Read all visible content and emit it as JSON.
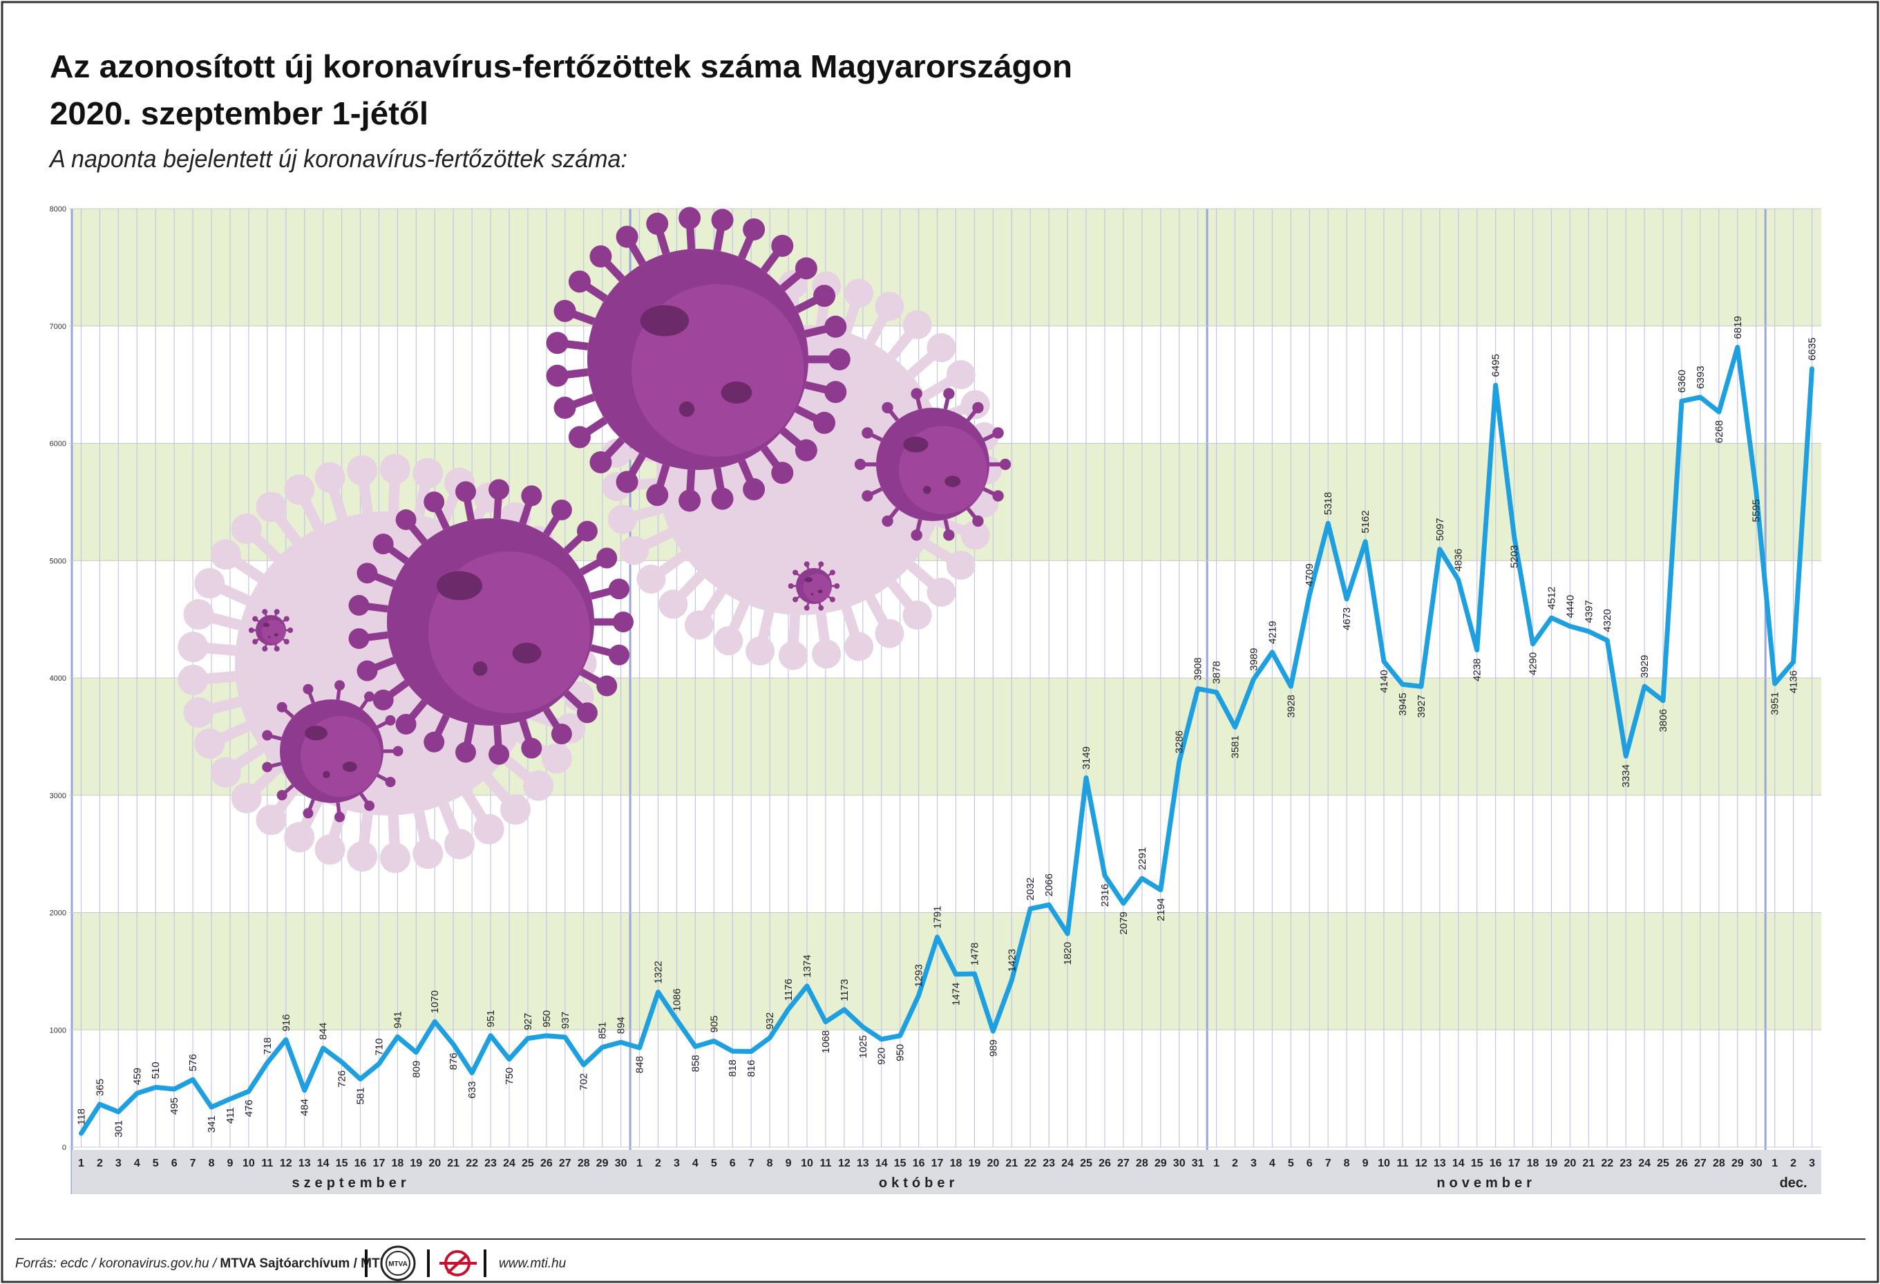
{
  "title_line1": "Az azonosított új koronavírus-fertőzöttek száma Magyarországon",
  "title_line2": "2020. szeptember 1-jétől",
  "subtitle": "A naponta bejelentett új koronavírus-fertőzöttek száma:",
  "footer": {
    "source": "Forrás: ecdc / koronavirus.gov.hu / ",
    "credit": "MTVA Sajtóarchívum / MTI",
    "logo1_text": "MTVA",
    "website": "www.mti.hu"
  },
  "colors": {
    "line": "#1ea0e0",
    "band": "#e8f0d2",
    "grid_day": "#c3c6e2",
    "grid_month": "#9aa6d8",
    "axis_strip": "#dcdde3",
    "virus_dark": "#8e3a8e",
    "virus_light": "#e6d2e2"
  },
  "chart_data": {
    "type": "line",
    "title": "Az azonosított új koronavírus-fertőzöttek száma Magyarországon 2020. szeptember 1-jétől",
    "subtitle": "A naponta bejelentett új koronavírus-fertőzöttek száma:",
    "ylim": [
      0,
      8000
    ],
    "yticks": [
      0,
      1000,
      2000,
      3000,
      4000,
      5000,
      6000,
      7000,
      8000
    ],
    "grid": true,
    "months": [
      {
        "label": "szeptember",
        "days": 30
      },
      {
        "label": "október",
        "days": 31
      },
      {
        "label": "november",
        "days": 30
      },
      {
        "label": "dec.",
        "days": 3
      }
    ],
    "x": [
      "1",
      "2",
      "3",
      "4",
      "5",
      "6",
      "7",
      "8",
      "9",
      "10",
      "11",
      "12",
      "13",
      "14",
      "15",
      "16",
      "17",
      "18",
      "19",
      "20",
      "21",
      "22",
      "23",
      "24",
      "25",
      "26",
      "27",
      "28",
      "29",
      "30",
      "1",
      "2",
      "3",
      "4",
      "5",
      "6",
      "7",
      "8",
      "9",
      "10",
      "11",
      "12",
      "13",
      "14",
      "15",
      "16",
      "17",
      "18",
      "19",
      "20",
      "21",
      "22",
      "23",
      "24",
      "25",
      "26",
      "27",
      "28",
      "29",
      "30",
      "31",
      "1",
      "2",
      "3",
      "4",
      "5",
      "6",
      "7",
      "8",
      "9",
      "10",
      "11",
      "12",
      "13",
      "14",
      "15",
      "16",
      "17",
      "18",
      "19",
      "20",
      "21",
      "22",
      "23",
      "24",
      "25",
      "26",
      "27",
      "28",
      "29",
      "30",
      "1",
      "2",
      "3"
    ],
    "values": [
      118,
      365,
      301,
      459,
      510,
      495,
      576,
      341,
      411,
      476,
      718,
      916,
      484,
      844,
      726,
      581,
      710,
      941,
      809,
      1070,
      876,
      633,
      951,
      750,
      927,
      950,
      937,
      702,
      851,
      894,
      848,
      1322,
      1086,
      858,
      905,
      818,
      816,
      932,
      1176,
      1374,
      1068,
      1173,
      1025,
      920,
      950,
      1293,
      1791,
      1474,
      1478,
      989,
      1423,
      2032,
      2066,
      1820,
      3149,
      2316,
      2079,
      2291,
      2194,
      3286,
      3908,
      3878,
      3581,
      3989,
      4219,
      3928,
      4709,
      5318,
      4673,
      5162,
      4140,
      3945,
      3927,
      5097,
      4836,
      4238,
      6495,
      5203,
      4290,
      4512,
      4440,
      4397,
      4320,
      3334,
      3929,
      3806,
      6360,
      6393,
      6268,
      6819,
      5595,
      3951,
      4136,
      6635
    ],
    "label_pos": [
      "above",
      "above",
      "below",
      "above",
      "above",
      "below",
      "above",
      "below",
      "below",
      "below",
      "above",
      "above",
      "below",
      "above",
      "below",
      "below",
      "above",
      "above",
      "below",
      "above",
      "below",
      "below",
      "above",
      "below",
      "above",
      "above",
      "above",
      "below",
      "above",
      "above",
      "below",
      "above",
      "above",
      "below",
      "above",
      "below",
      "below",
      "above",
      "above",
      "above",
      "below",
      "above",
      "below",
      "below",
      "below",
      "above",
      "above",
      "below",
      "above",
      "below",
      "above",
      "above",
      "above",
      "below",
      "above",
      "below",
      "below",
      "above",
      "below",
      "above",
      "above",
      "above",
      "below",
      "above",
      "above",
      "below",
      "above",
      "above",
      "below",
      "above",
      "below",
      "below",
      "below",
      "above",
      "above",
      "below",
      "above",
      "below",
      "below",
      "above",
      "above",
      "above",
      "above",
      "below",
      "above",
      "below",
      "above",
      "above",
      "below",
      "above",
      "below",
      "below",
      "below",
      "above"
    ]
  }
}
